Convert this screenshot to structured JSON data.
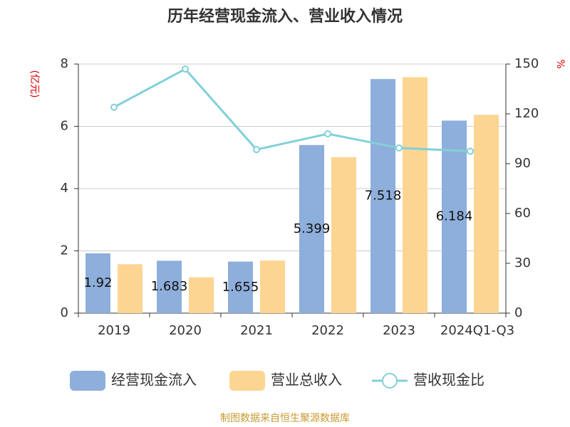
{
  "chart_data": {
    "type": "bar-line",
    "title": "历年经营现金流入、营业收入情况",
    "y_label": "(亿元)",
    "y2_label": "%",
    "source": "制图数据来自恒生聚源数据库",
    "categories": [
      "2019",
      "2020",
      "2021",
      "2022",
      "2023",
      "2024Q1-Q3"
    ],
    "series": [
      {
        "name": "经营现金流入",
        "type": "bar",
        "color": "#8eaedb",
        "values": [
          1.92,
          1.683,
          1.655,
          5.399,
          7.518,
          6.184
        ],
        "show_labels": true
      },
      {
        "name": "营业总收入",
        "type": "bar",
        "color": "#fdd593",
        "values": [
          1.57,
          1.15,
          1.69,
          5.01,
          7.58,
          6.37
        ]
      },
      {
        "name": "营收现金比",
        "type": "line",
        "axis": "y2",
        "color": "#82d0d8",
        "values": [
          124,
          147,
          98.5,
          108,
          99.5,
          97.5
        ]
      }
    ],
    "ylim": [
      0,
      8
    ],
    "yticks": [
      0,
      2,
      4,
      6,
      8
    ],
    "y2lim": [
      0,
      150
    ],
    "y2ticks": [
      0,
      30,
      60,
      90,
      120,
      150
    ],
    "grid": true
  }
}
